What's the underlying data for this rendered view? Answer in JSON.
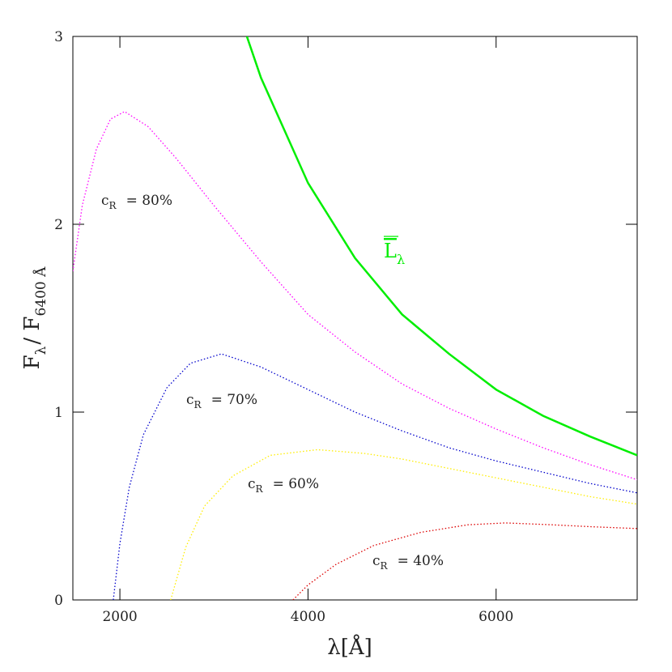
{
  "chart_data": {
    "type": "line",
    "xlabel": "λ[Å]",
    "ylabel": [
      "F",
      "λ",
      "/ F",
      "6400 Å"
    ],
    "xlim": [
      1500,
      7500
    ],
    "ylim": [
      0,
      3
    ],
    "xticks": [
      2000,
      4000,
      6000
    ],
    "yticks": [
      0,
      1,
      2,
      3
    ],
    "series": [
      {
        "label": [
          "L",
          "λ"
        ],
        "color": "#00ee00",
        "linestyle": "solid",
        "x": [
          3350,
          3500,
          4000,
          4500,
          5000,
          5500,
          6000,
          6500,
          7000,
          7500
        ],
        "values": [
          3.0,
          2.78,
          2.22,
          1.82,
          1.52,
          1.31,
          1.12,
          0.98,
          0.87,
          0.77
        ]
      },
      {
        "label": [
          "c",
          "R",
          "= 80%"
        ],
        "color": "#ff00ff",
        "linestyle": "dotted",
        "x": [
          1500,
          1600,
          1750,
          1900,
          2050,
          2300,
          2600,
          3000,
          3500,
          4000,
          4500,
          5000,
          5500,
          6000,
          6500,
          7000,
          7500
        ],
        "values": [
          1.75,
          2.1,
          2.4,
          2.56,
          2.6,
          2.52,
          2.35,
          2.1,
          1.8,
          1.52,
          1.32,
          1.15,
          1.02,
          0.91,
          0.81,
          0.72,
          0.64
        ]
      },
      {
        "label": [
          "c",
          "R",
          "= 70%"
        ],
        "color": "#0000cc",
        "linestyle": "dotted",
        "x": [
          1930,
          2000,
          2100,
          2250,
          2500,
          2750,
          3080,
          3500,
          4000,
          4500,
          5000,
          5500,
          6000,
          6500,
          7000,
          7500
        ],
        "values": [
          0,
          0.3,
          0.6,
          0.88,
          1.13,
          1.26,
          1.31,
          1.24,
          1.12,
          1.0,
          0.9,
          0.81,
          0.74,
          0.68,
          0.62,
          0.57
        ]
      },
      {
        "label": [
          "c",
          "R",
          "= 60%"
        ],
        "color": "#ffee00",
        "linestyle": "dotted",
        "x": [
          2540,
          2700,
          2900,
          3200,
          3600,
          4100,
          4600,
          5000,
          5500,
          6000,
          6500,
          7000,
          7500
        ],
        "values": [
          0,
          0.28,
          0.5,
          0.66,
          0.77,
          0.8,
          0.78,
          0.75,
          0.7,
          0.65,
          0.6,
          0.55,
          0.51
        ]
      },
      {
        "label": [
          "c",
          "R",
          "= 40%"
        ],
        "color": "#dd0000",
        "linestyle": "dotted",
        "x": [
          3840,
          4000,
          4300,
          4700,
          5200,
          5700,
          6100,
          6600,
          7000,
          7500
        ],
        "values": [
          0,
          0.08,
          0.19,
          0.29,
          0.36,
          0.4,
          0.41,
          0.4,
          0.39,
          0.38
        ]
      }
    ]
  }
}
